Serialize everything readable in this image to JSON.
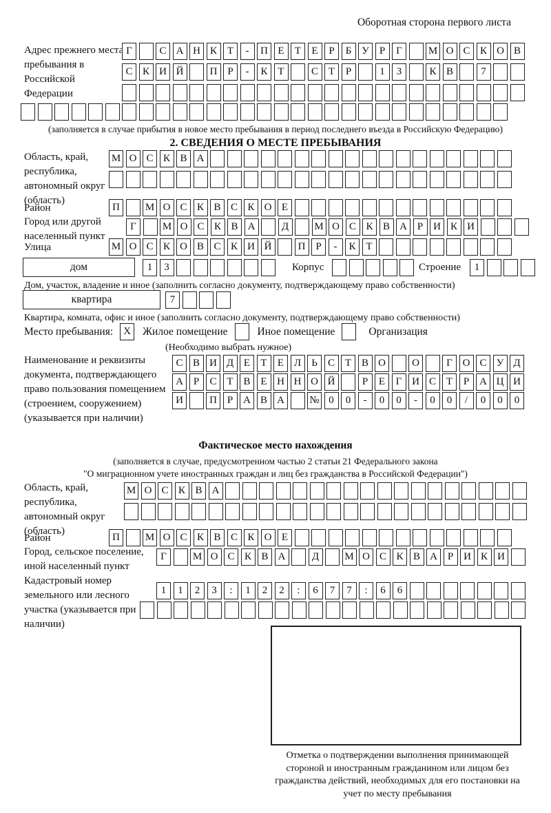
{
  "page": {
    "header_note": "Оборотная сторона первого листа"
  },
  "prev_address": {
    "label": "Адрес прежнего места пребывания в Российской Федерации",
    "rows": [
      "Г САНКТ-ПЕТЕРБУРГ МОСКОВ",
      "СКИЙ ПР-КТ СТР 13 КВ 7",
      "",
      ""
    ],
    "note": "(заполняется в случае прибытия в новое место пребывания в период последнего въезда в Российскую Федерацию)"
  },
  "section2": {
    "title": "2. СВЕДЕНИЯ О МЕСТЕ ПРЕБЫВАНИЯ",
    "region_label": "Область, край, республика, автономный округ (область)",
    "region_rows": [
      "МОСКВА",
      ""
    ],
    "district_label": "Район",
    "district_row": "П МОСКВСКОЕ",
    "city_label": "Город или другой населенный пункт",
    "city_row": "Г МОСКВА Д МОСКВАРИКИ",
    "street_label": "Улица",
    "street_row": "МОСКОВСКИЙ ПР-КТ",
    "house_box_label": "дом",
    "house_row": "13",
    "corpus_label": "Корпус",
    "corpus_row": "",
    "building_label": "Строение",
    "building_row": "1",
    "house_note": "Дом, участок, владение и иное (заполнить согласно документу, подтверждающему право собственности)",
    "apt_box_label": "квартира",
    "apt_row": "7",
    "apt_note": "Квартира, комната, офис и иное (заполнить согласно документу, подтверждающему право собственности)",
    "stay": {
      "label": "Место пребывания:",
      "options": [
        {
          "mark": "X",
          "label": "Жилое помещение"
        },
        {
          "mark": "",
          "label": "Иное помещение"
        },
        {
          "mark": "",
          "label": "Организация"
        }
      ],
      "note": "(Необходимо выбрать нужное)"
    },
    "doc_label": "Наименование и реквизиты документа, подтверждающего право пользования помещением (строением, сооружением) (указывается при наличии)",
    "doc_rows": [
      "СВИДЕТЕЛЬСТВО О ГОСУД",
      "АРСТВЕННОЙ РЕГИСТРАЦИ",
      "И ПРАВА №00-00-00/000"
    ]
  },
  "fact": {
    "title": "Фактическое место нахождения",
    "note_line1": "(заполняется в случае, предусмотренном частью 2 статьи 21 Федерального закона",
    "note_line2": "\"О миграционном учете иностранных граждан и лиц без гражданства в Российской Федерации\")",
    "region_label": "Область, край, республика, автономный округ (область)",
    "region_rows": [
      "МОСКВА",
      ""
    ],
    "district_label": "Район",
    "district_row": "П МОСКВСКОЕ",
    "city_label": "Город, сельское поселение, иной населенный пункт",
    "city_row": "Г МОСКВА Д МОСКВАРИКИ",
    "cadastre_label": "Кадастровый номер земельного или лесного участка (указывается при наличии)",
    "cadastre_rows": [
      "1123:122:677:66",
      ""
    ],
    "stamp_note": "Отметка о подтверждении выполнения принимающей стороной и иностранным гражданином или лицом без гражданства действий, необходимых для его постановки на учет по месту пребывания"
  }
}
